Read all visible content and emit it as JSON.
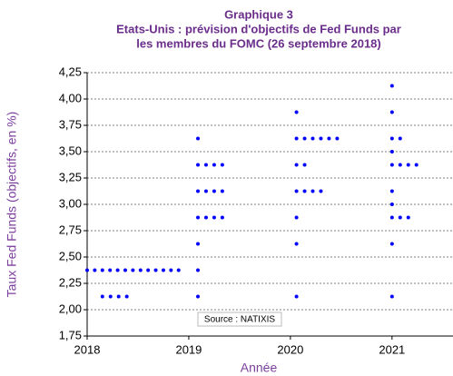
{
  "chart_data": {
    "type": "scatter",
    "title_lines": [
      "Graphique 3",
      "Etats-Unis : prévision d'objectifs de Fed Funds par",
      "les membres du FOMC (26 septembre  2018)"
    ],
    "xlabel": "Année",
    "ylabel": "Taux Fed Funds (objectifs, en %)",
    "annotation": "Source : NATIXIS",
    "color": "#0000ff",
    "x": [
      2018,
      2018.075,
      2018.15,
      2018.225,
      2018.3,
      2018.375,
      2018.45,
      2018.525,
      2018.6,
      2018.675,
      2018.75,
      2018.825,
      2018.9,
      2018.15,
      2018.23,
      2018.31,
      2018.39,
      2019.09,
      2019.09,
      2019.17,
      2019.25,
      2019.33,
      2019.09,
      2019.17,
      2019.25,
      2019.33,
      2019.09,
      2019.17,
      2019.25,
      2019.33,
      2019.09,
      2019.09,
      2019.09,
      2020.06,
      2020.06,
      2020.14,
      2020.22,
      2020.3,
      2020.38,
      2020.46,
      2020.06,
      2020.14,
      2020.06,
      2020.14,
      2020.22,
      2020.3,
      2020.06,
      2020.06,
      2020.06,
      2021,
      2021,
      2021,
      2021.08,
      2021,
      2021,
      2021.08,
      2021.16,
      2021.24,
      2021,
      2021,
      2021,
      2021.08,
      2021.16,
      2021,
      2021
    ],
    "values": [
      2.375,
      2.375,
      2.375,
      2.375,
      2.375,
      2.375,
      2.375,
      2.375,
      2.375,
      2.375,
      2.375,
      2.375,
      2.375,
      2.125,
      2.125,
      2.125,
      2.125,
      3.625,
      3.375,
      3.375,
      3.375,
      3.375,
      3.125,
      3.125,
      3.125,
      3.125,
      2.875,
      2.875,
      2.875,
      2.875,
      2.625,
      2.375,
      2.125,
      3.875,
      3.625,
      3.625,
      3.625,
      3.625,
      3.625,
      3.625,
      3.375,
      3.375,
      3.125,
      3.125,
      3.125,
      3.125,
      2.875,
      2.625,
      2.125,
      4.125,
      3.875,
      3.625,
      3.625,
      3.5,
      3.375,
      3.375,
      3.375,
      3.375,
      3.125,
      3,
      2.875,
      2.875,
      2.875,
      2.625,
      2.125
    ],
    "xlim": [
      2018,
      2021.6
    ],
    "xticks": [
      2018,
      2019,
      2020,
      2021
    ],
    "ylim": [
      1.75,
      4.25
    ],
    "yticks": [
      {
        "value": 1.75,
        "label": "1,75"
      },
      {
        "value": 2,
        "label": "2,00"
      },
      {
        "value": 2.25,
        "label": "2,25"
      },
      {
        "value": 2.5,
        "label": "2,50"
      },
      {
        "value": 2.75,
        "label": "2,75"
      },
      {
        "value": 3,
        "label": "3,00"
      },
      {
        "value": 3.25,
        "label": "3,25"
      },
      {
        "value": 3.5,
        "label": "3,50"
      },
      {
        "value": 3.75,
        "label": "3,75"
      },
      {
        "value": 4,
        "label": "4,00"
      },
      {
        "value": 4.25,
        "label": "4,25"
      }
    ],
    "grid": true
  }
}
